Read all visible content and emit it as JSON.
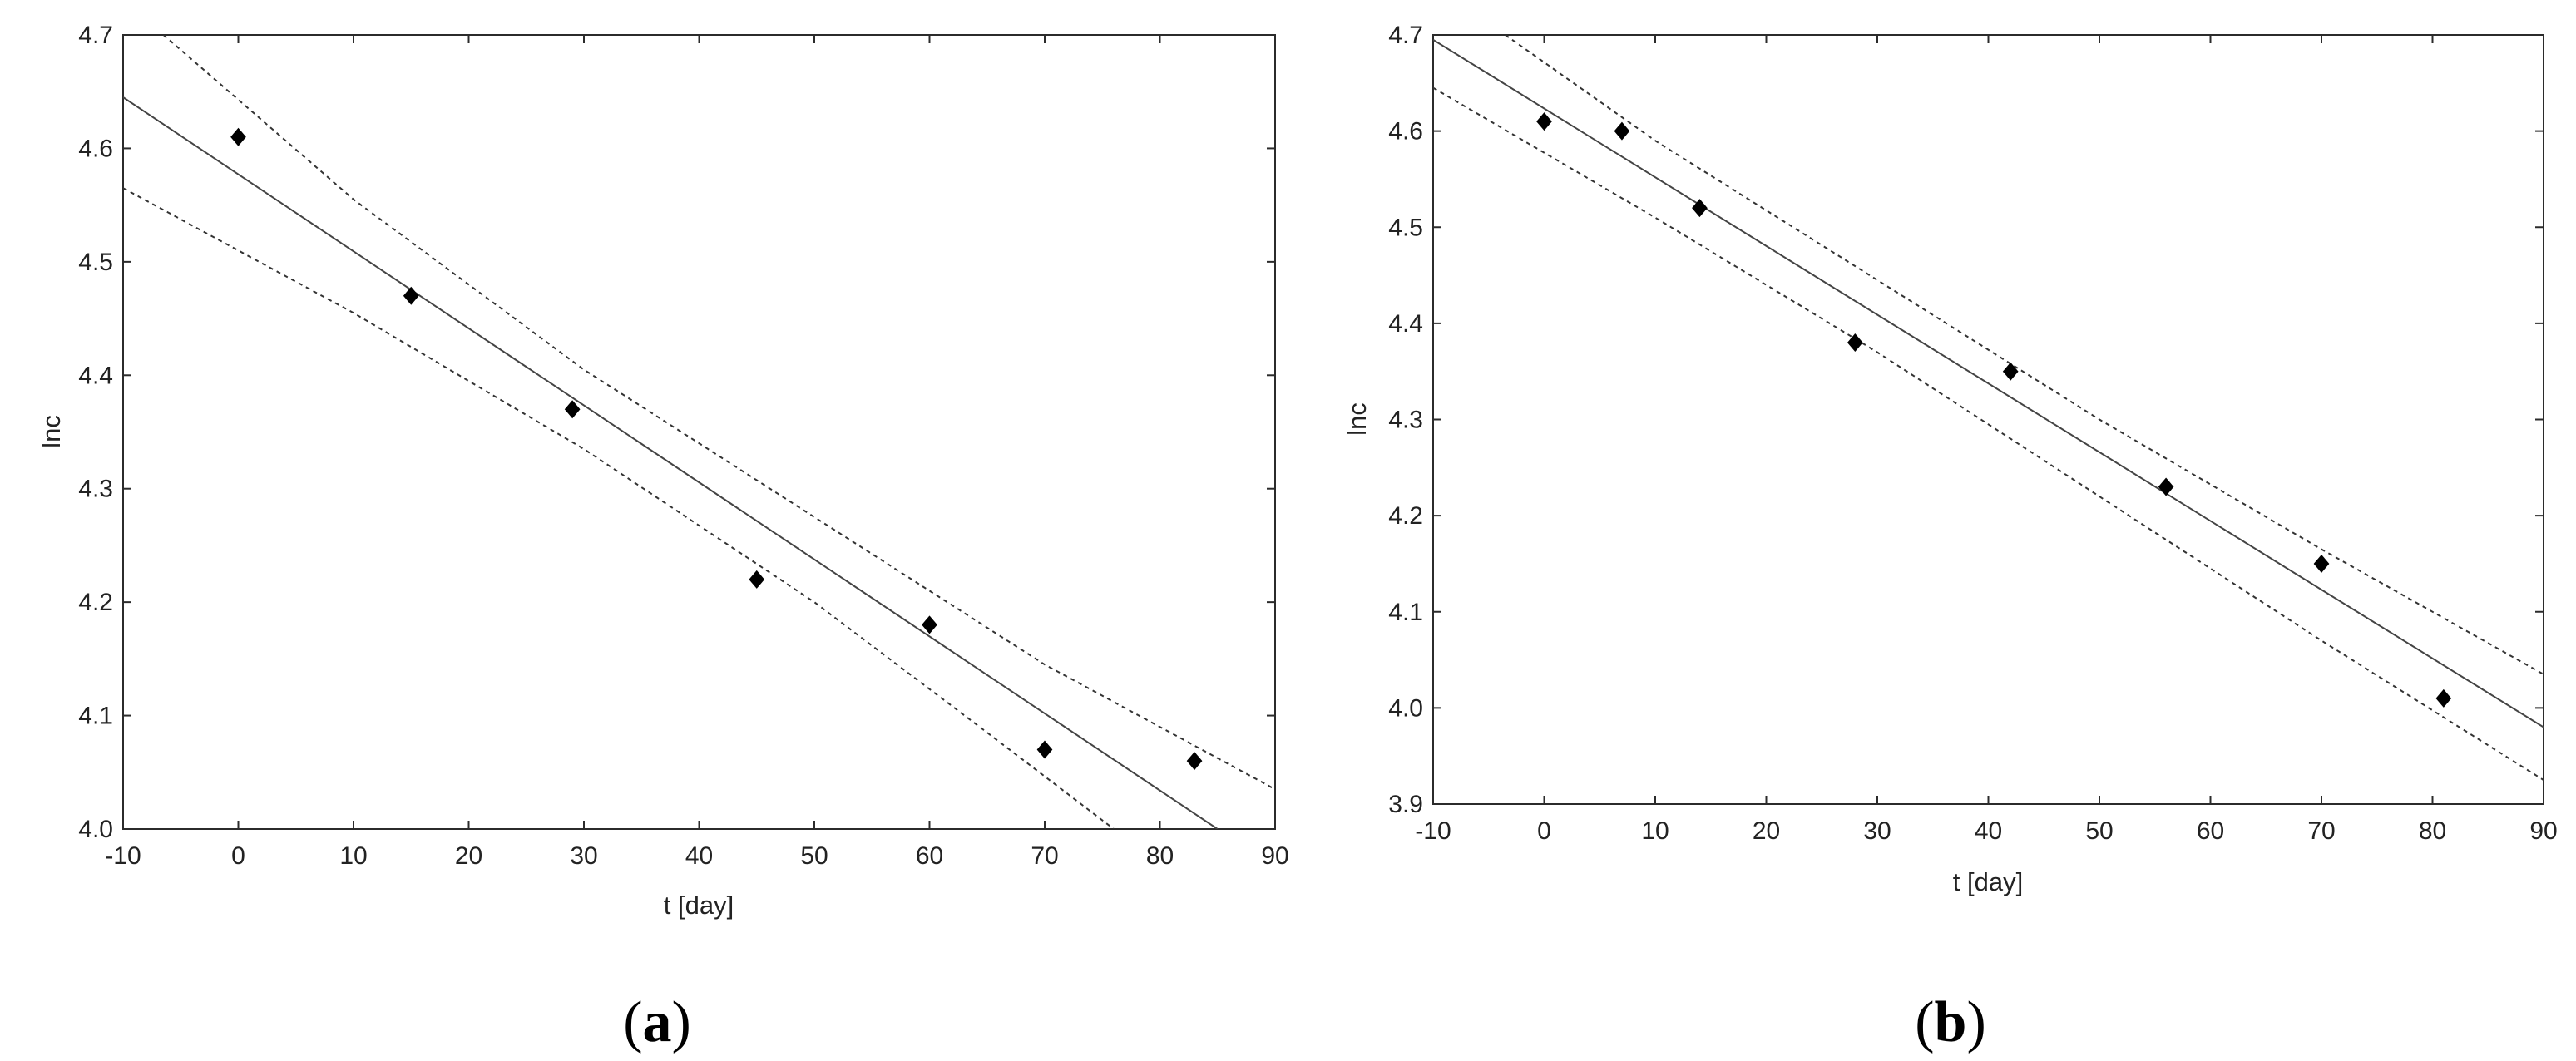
{
  "chart_data": [
    {
      "type": "scatter",
      "panel_label": "a",
      "xlabel": "t  [day]",
      "ylabel": "lnc",
      "xlim": [
        -10,
        90
      ],
      "ylim": [
        4.0,
        4.7
      ],
      "xticks": [
        "-10",
        "0",
        "10",
        "20",
        "30",
        "40",
        "50",
        "60",
        "70",
        "80",
        "90"
      ],
      "yticks": [
        "4.0",
        "4.1",
        "4.2",
        "4.3",
        "4.4",
        "4.5",
        "4.6",
        "4.7"
      ],
      "grid": false,
      "points": [
        {
          "x": 0,
          "y": 4.61
        },
        {
          "x": 15,
          "y": 4.47
        },
        {
          "x": 29,
          "y": 4.37
        },
        {
          "x": 45,
          "y": 4.22
        },
        {
          "x": 60,
          "y": 4.18
        },
        {
          "x": 70,
          "y": 4.07
        },
        {
          "x": 83,
          "y": 4.06
        }
      ],
      "fit_line": {
        "style": "solid",
        "points": [
          {
            "x": -10,
            "y": 4.645
          },
          {
            "x": 85,
            "y": 4.0
          }
        ]
      },
      "confidence_bands": [
        {
          "style": "dotted",
          "points": [
            {
              "x": -6.5,
              "y": 4.7
            },
            {
              "x": 10,
              "y": 4.555
            },
            {
              "x": 30,
              "y": 4.405
            },
            {
              "x": 50,
              "y": 4.275
            },
            {
              "x": 70,
              "y": 4.145
            },
            {
              "x": 90,
              "y": 4.035
            }
          ]
        },
        {
          "style": "dotted",
          "points": [
            {
              "x": -10,
              "y": 4.565
            },
            {
              "x": 10,
              "y": 4.455
            },
            {
              "x": 30,
              "y": 4.335
            },
            {
              "x": 50,
              "y": 4.2
            },
            {
              "x": 65,
              "y": 4.085
            },
            {
              "x": 76,
              "y": 4.0
            }
          ]
        }
      ]
    },
    {
      "type": "scatter",
      "panel_label": "b",
      "xlabel": "t  [day]",
      "ylabel": "lnc",
      "xlim": [
        -10,
        90
      ],
      "ylim": [
        3.9,
        4.7
      ],
      "xticks": [
        "-10",
        "0",
        "10",
        "20",
        "30",
        "40",
        "50",
        "60",
        "70",
        "80",
        "90"
      ],
      "yticks": [
        "3.9",
        "4.0",
        "4.1",
        "4.2",
        "4.3",
        "4.4",
        "4.5",
        "4.6",
        "4.7"
      ],
      "grid": false,
      "points": [
        {
          "x": 0,
          "y": 4.61
        },
        {
          "x": 7,
          "y": 4.6
        },
        {
          "x": 14,
          "y": 4.52
        },
        {
          "x": 28,
          "y": 4.38
        },
        {
          "x": 42,
          "y": 4.35
        },
        {
          "x": 56,
          "y": 4.23
        },
        {
          "x": 70,
          "y": 4.15
        },
        {
          "x": 81,
          "y": 4.01
        }
      ],
      "fit_line": {
        "style": "solid",
        "points": [
          {
            "x": -10,
            "y": 4.695
          },
          {
            "x": 90,
            "y": 3.98
          }
        ]
      },
      "confidence_bands": [
        {
          "style": "dotted",
          "points": [
            {
              "x": -3.5,
              "y": 4.7
            },
            {
              "x": 10,
              "y": 4.59
            },
            {
              "x": 30,
              "y": 4.445
            },
            {
              "x": 50,
              "y": 4.3
            },
            {
              "x": 70,
              "y": 4.165
            },
            {
              "x": 90,
              "y": 4.035
            }
          ]
        },
        {
          "style": "dotted",
          "points": [
            {
              "x": -10,
              "y": 4.645
            },
            {
              "x": 10,
              "y": 4.51
            },
            {
              "x": 30,
              "y": 4.37
            },
            {
              "x": 50,
              "y": 4.22
            },
            {
              "x": 70,
              "y": 4.07
            },
            {
              "x": 90,
              "y": 3.925
            }
          ]
        }
      ]
    }
  ]
}
